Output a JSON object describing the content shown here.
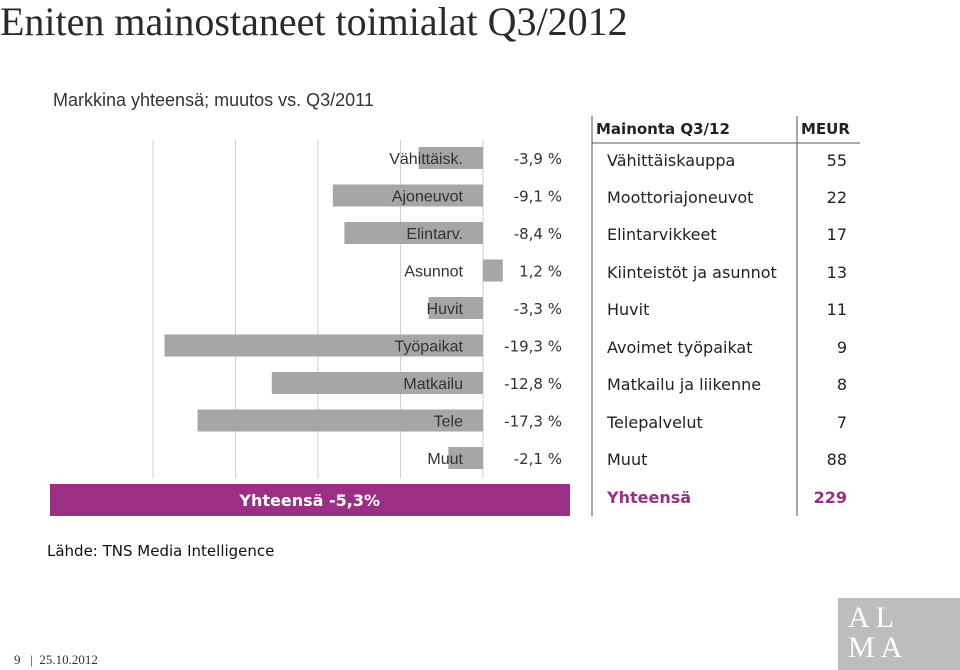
{
  "page": {
    "title": "Eniten mainostaneet toimialat Q3/2012"
  },
  "chart_data": {
    "type": "bar",
    "title": "Eniten mainostaneet toimialat Q3/2012",
    "subtitle": "Markkina yhteensä; muutos vs. Q3/2011",
    "orientation": "horizontal",
    "categories": [
      "Vähittäisk.",
      "Ajoneuvot",
      "Elintarv.",
      "Asunnot",
      "Huvit",
      "Työpaikat",
      "Matkailu",
      "Tele",
      "Muut"
    ],
    "values": [
      -3.9,
      -9.1,
      -8.4,
      1.2,
      -3.3,
      -19.3,
      -12.8,
      -17.3,
      -2.1
    ],
    "value_labels": [
      "-3,9 %",
      "-9,1 %",
      "-8,4 %",
      "1,2 %",
      "-3,3 %",
      "-19,3 %",
      "-12,8 %",
      "-17,3 %",
      "-2,1 %"
    ],
    "total_label": "Yhteensä -5,3%",
    "total_value": -5.3,
    "xlim": [
      -21,
      2
    ],
    "bar_color": "#a6a6a6",
    "total_color": "#9b2f86",
    "grid": true
  },
  "table": {
    "header_label": "Mainonta Q3/12",
    "header_unit": "MEUR",
    "rows": [
      {
        "label": "Vähittäiskauppa",
        "value": "55"
      },
      {
        "label": "Moottoriajoneuvot",
        "value": "22"
      },
      {
        "label": "Elintarvikkeet",
        "value": "17"
      },
      {
        "label": "Kiinteistöt ja asunnot",
        "value": "13"
      },
      {
        "label": "Huvit",
        "value": "11"
      },
      {
        "label": "Avoimet työpaikat",
        "value": "9"
      },
      {
        "label": "Matkailu ja liikenne",
        "value": "8"
      },
      {
        "label": "Telepalvelut",
        "value": "7"
      },
      {
        "label": "Muut",
        "value": "88"
      }
    ],
    "total_label": "Yhteensä",
    "total_value": "229"
  },
  "source": "Lähde: TNS Media Intelligence",
  "footer": {
    "page_number": "9",
    "date": "25.10.2012"
  },
  "logo": {
    "line1": "AL",
    "line2": "MA",
    "color": "#bdbdbd"
  }
}
